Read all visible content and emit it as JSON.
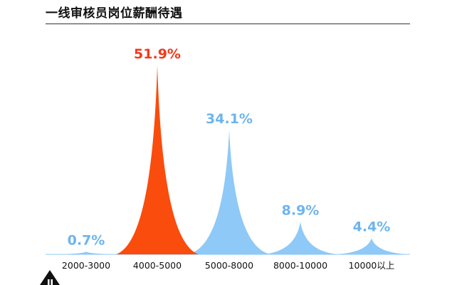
{
  "title": "一线审核员岗位薪酬待遇",
  "chart_data": {
    "type": "area",
    "title": "一线审核员岗位薪酬待遇",
    "xlabel": "",
    "ylabel": "",
    "ylim": [
      0,
      55
    ],
    "grid": false,
    "legend": "none",
    "categories": [
      "2000-3000",
      "4000-5000",
      "5000-8000",
      "8000-10000",
      "10000以上"
    ],
    "values": [
      0.7,
      51.9,
      34.1,
      8.9,
      4.4
    ],
    "data_labels": [
      "0.7%",
      "51.9%",
      "34.1%",
      "8.9%",
      "4.4%"
    ],
    "colors": [
      "#8ec9f7",
      "#fa4c0c",
      "#8ec9f7",
      "#8ec9f7",
      "#8ec9f7"
    ],
    "highlight_label_color": "#f5381a",
    "label_color": "#6db4ee"
  }
}
